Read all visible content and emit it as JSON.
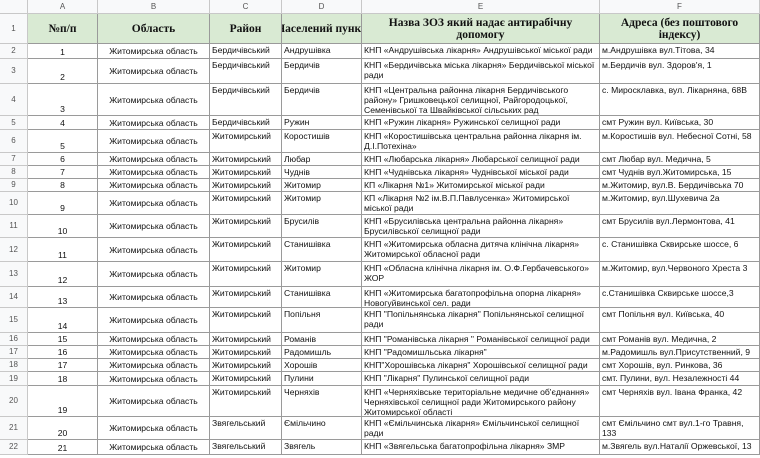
{
  "column_letters": [
    "A",
    "B",
    "C",
    "D",
    "E",
    "F"
  ],
  "row_numbers": [
    1,
    2,
    3,
    4,
    5,
    6,
    7,
    8,
    9,
    10,
    11,
    12,
    13,
    14,
    15,
    16,
    17,
    18,
    19,
    20,
    21,
    22
  ],
  "table": {
    "header": [
      "№п/п",
      "Область",
      "Район",
      "Населений пункт",
      "Назва ЗОЗ який надає антирабічну допомогу",
      "Адреса (без поштового індексу)"
    ],
    "rows": [
      [
        1,
        "Житомирська область",
        "Бердичівський",
        "Андрушівка",
        "КНП «Андрушівська лікарня» Андрушівської міської ради",
        "м.Андрушівка вул.Тітова, 34"
      ],
      [
        2,
        "Житомирська область",
        "Бердичівський",
        "Бердичів",
        "КНП «Бердичівська міська лікарня» Бердичівської міської ради",
        "м.Бердичів вул. Здоров'я, 1"
      ],
      [
        3,
        "Житомирська область",
        "Бердичівський",
        "Бердичів",
        "КНП «Центральна районна лікарня Бердичівського району» Гришковецької селищної, Райгородоцької, Семенівської та Швайківської сільських рад",
        "с. Миросклавка, вул. Лікарняна, 68В"
      ],
      [
        4,
        "Житомирська область",
        "Бердичівський",
        "Ружин",
        "КНП «Ружин лікарня» Ружинської селищної ради",
        "смт Ружин вул. Київська, 30"
      ],
      [
        5,
        "Житомирська область",
        "Житомирський",
        "Коростишів",
        "КНП «Коростишівська центральна районна лікарня ім. Д.І.Потехіна»",
        "м.Коростишів вул. Небесної Сотні, 58"
      ],
      [
        6,
        "Житомирська область",
        "Житомирський",
        "Любар",
        "КНП «Любарська лікарня» Любарської селищної ради",
        "смт Любар вул. Медична, 5"
      ],
      [
        7,
        "Житомирська область",
        "Житомирський",
        "Чуднів",
        "КНП «Чуднівська лікарня» Чуднівської міської ради",
        "смт Чуднів вул.Житомирська, 15"
      ],
      [
        8,
        "Житомирська область",
        "Житомирський",
        "Житомир",
        "КП «Лікарня №1» Житомирської міської ради",
        "м.Житомир, вул.В. Бердичівська 70"
      ],
      [
        9,
        "Житомирська область",
        "Житомирський",
        "Житомир",
        "КП «Лікарня №2 ім.В.П.Павлусенка» Житомирської міської ради",
        "м.Житомир, вул.Шухевича 2а"
      ],
      [
        10,
        "Житомирська область",
        "Житомирський",
        "Брусилів",
        "КНП «Брусилівська центральна районна лікарня» Брусилівської селищної ради",
        "смт Брусилів вул.Лермонтова, 41"
      ],
      [
        11,
        "Житомирська область",
        "Житомирський",
        "Станишівка",
        "КНП «Житомирська обласна дитяча клінічна лікарня» Житомирської обласної ради",
        "с. Станишівка Сквирське шоссе, 6"
      ],
      [
        12,
        "Житомирська область",
        "Житомирський",
        "Житомир",
        "КНП «Обласна клінічна лікарня ім. О.Ф.Гербачевського» ЖОР",
        "м.Житомир, вул.Червоного Хреста 3"
      ],
      [
        13,
        "Житомирська область",
        "Житомирський",
        "Станишівка",
        "КНП «Житомирська багатопрофільна опорна лікарня» Новогуйвинської сел. ради",
        "с.Станишівка Сквирське шоссе,3"
      ],
      [
        14,
        "Житомирська область",
        "Житомирський",
        "Попільня",
        "КНП \"Попільнянська лікарня\" Попільнянської селищної ради",
        "смт Попільня вул. Київська, 40"
      ],
      [
        15,
        "Житомирська область",
        "Житомирський",
        "Романів",
        "КНП \"Романівська лікарня \" Романівської селищної ради",
        "смт Романів вул. Медична, 2"
      ],
      [
        16,
        "Житомирська область",
        "Житомирський",
        "Радомишль",
        "КНП \"Радомишльська лікарня\"",
        "м.Радомишль вул.Присутственний, 9"
      ],
      [
        17,
        "Житомирська область",
        "Житомирський",
        "Хорошів",
        "КНП\"Хорошівська лікарня\" Хорошівської селищної ради",
        "смт Хорошів, вул. Ринкова, 36"
      ],
      [
        18,
        "Житомирська область",
        "Житомирський",
        "Пулини",
        "КНП \"Лікарня\" Пулинської селищної ради",
        "смт. Пулини, вул. Незалежності 44"
      ],
      [
        19,
        "Житомирська область",
        "Житомирський",
        "Черняхів",
        "КНП «Черняхівське територіальне медичне об'єднання» Черняхівської селищної ради Житомирського району Житомирської області",
        "смт Черняхів вул. Івана Франка, 42"
      ],
      [
        20,
        "Житомирська область",
        "Звягельський",
        "Ємільчино",
        "КНП «Ємільчинська лікарня» Ємільчинської селищної ради",
        "смт Ємільчино смт вул.1-го Травня, 133"
      ],
      [
        21,
        "Житомирська область",
        "Звягельський",
        "Звягель",
        "КНП «Звягельська багатопрофільна лікарня» ЗМР",
        "м.Звягель вул.Наталії Оржевської, 13"
      ]
    ]
  }
}
